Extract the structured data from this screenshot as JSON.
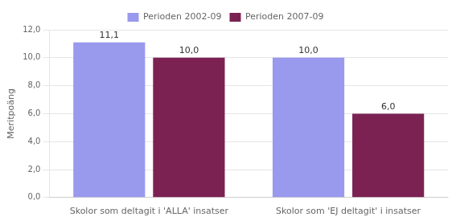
{
  "chart_data": {
    "type": "bar",
    "categories": [
      "Skolor som deltagit i 'ALLA' insatser",
      "Skolor som 'EJ deltagit' i insatser"
    ],
    "series": [
      {
        "name": "Perioden 2002-09",
        "color": "#9999ee",
        "values": [
          11.1,
          10.0
        ],
        "value_labels": [
          "11,1",
          "10,0"
        ]
      },
      {
        "name": "Perioden 2007-09",
        "color": "#7b2252",
        "values": [
          10.0,
          6.0
        ],
        "value_labels": [
          "10,0",
          "6,0"
        ]
      }
    ],
    "ylabel": "Meritpoäng",
    "ylim": [
      0,
      12
    ],
    "yticks": [
      {
        "value": 0,
        "label": "0,0"
      },
      {
        "value": 2,
        "label": "2,0"
      },
      {
        "value": 4,
        "label": "4,0"
      },
      {
        "value": 6,
        "label": "6,0"
      },
      {
        "value": 8,
        "label": "8,0"
      },
      {
        "value": 10,
        "label": "10,0"
      },
      {
        "value": 12,
        "label": "12,0"
      }
    ],
    "grid": true,
    "legend": "top",
    "data_labels": true
  }
}
